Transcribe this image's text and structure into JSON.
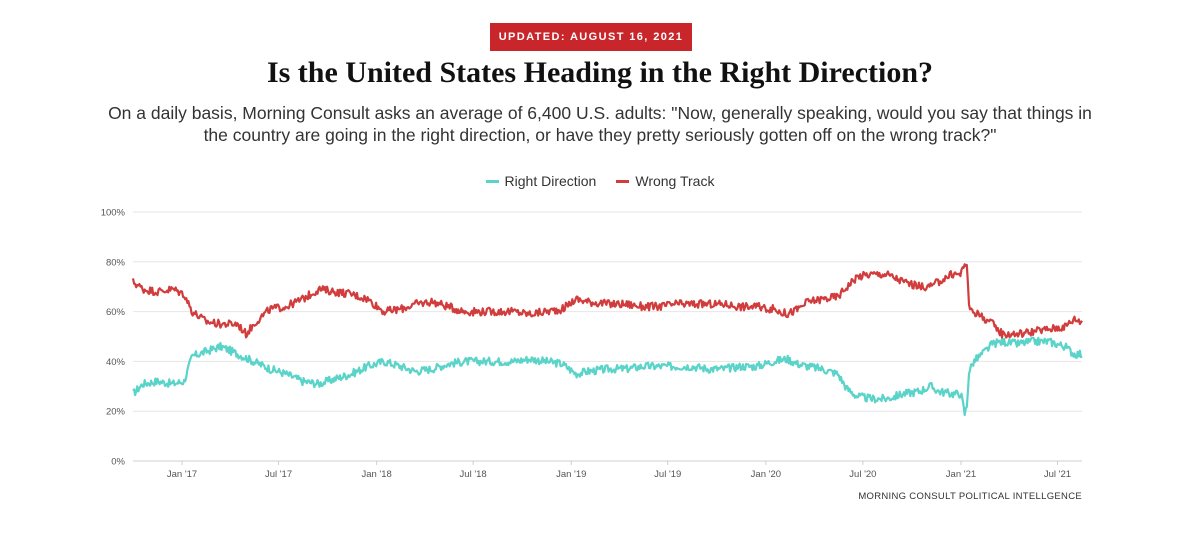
{
  "badge": {
    "text": "UPDATED: AUGUST 16, 2021"
  },
  "header": {
    "title": "Is the United States Heading in the Right Direction?",
    "subtitle": "On a daily basis, Morning Consult asks an average of 6,400 U.S. adults: \"Now, generally speaking, would you say that things in the country are going in the right direction, or have they pretty seriously gotten off on the wrong track?\""
  },
  "footer": {
    "source": "MORNING CONSULT POLITICAL INTELLGENCE"
  },
  "chart_data": {
    "type": "line",
    "title": "Is the United States Heading in the Right Direction?",
    "xlabel": "",
    "ylabel": "",
    "ylim": [
      0,
      100
    ],
    "xlim": [
      "2016-10-01",
      "2021-08-16"
    ],
    "y_ticks": [
      "0%",
      "20%",
      "40%",
      "60%",
      "80%",
      "100%"
    ],
    "y_tick_values": [
      0,
      20,
      40,
      60,
      80,
      100
    ],
    "x_ticks": [
      "Jan '17",
      "Jul '17",
      "Jan '18",
      "Jul '18",
      "Jan '19",
      "Jul '19",
      "Jan '20",
      "Jul '20",
      "Jan '21",
      "Jul '21"
    ],
    "x_tick_dates": [
      "2017-01-01",
      "2017-07-01",
      "2018-01-01",
      "2018-07-01",
      "2019-01-01",
      "2019-07-01",
      "2020-01-01",
      "2020-07-01",
      "2021-01-01",
      "2021-07-01"
    ],
    "legend_position": "top-center",
    "grid": true,
    "series": [
      {
        "name": "Right Direction",
        "color": "#5ad3c9",
        "points": [
          [
            "2016-10-01",
            27
          ],
          [
            "2016-10-20",
            31
          ],
          [
            "2016-11-15",
            32
          ],
          [
            "2016-12-15",
            31
          ],
          [
            "2017-01-05",
            32
          ],
          [
            "2017-01-20",
            42
          ],
          [
            "2017-02-15",
            44
          ],
          [
            "2017-03-15",
            46
          ],
          [
            "2017-04-15",
            43
          ],
          [
            "2017-05-15",
            40
          ],
          [
            "2017-06-15",
            37
          ],
          [
            "2017-07-15",
            35
          ],
          [
            "2017-08-15",
            32
          ],
          [
            "2017-09-15",
            31
          ],
          [
            "2017-10-15",
            33
          ],
          [
            "2017-11-15",
            35
          ],
          [
            "2017-12-15",
            38
          ],
          [
            "2018-01-15",
            40
          ],
          [
            "2018-02-15",
            38
          ],
          [
            "2018-03-15",
            36
          ],
          [
            "2018-04-15",
            37
          ],
          [
            "2018-05-15",
            39
          ],
          [
            "2018-06-15",
            40
          ],
          [
            "2018-07-15",
            40
          ],
          [
            "2018-08-15",
            40
          ],
          [
            "2018-09-15",
            40
          ],
          [
            "2018-10-15",
            41
          ],
          [
            "2018-11-15",
            40
          ],
          [
            "2018-12-15",
            39
          ],
          [
            "2019-01-10",
            35
          ],
          [
            "2019-02-01",
            36
          ],
          [
            "2019-03-15",
            37
          ],
          [
            "2019-04-15",
            37
          ],
          [
            "2019-05-15",
            38
          ],
          [
            "2019-06-15",
            38
          ],
          [
            "2019-07-15",
            38
          ],
          [
            "2019-08-15",
            38
          ],
          [
            "2019-09-15",
            37
          ],
          [
            "2019-10-15",
            37
          ],
          [
            "2019-11-15",
            38
          ],
          [
            "2019-12-15",
            38
          ],
          [
            "2020-01-15",
            40
          ],
          [
            "2020-02-10",
            41
          ],
          [
            "2020-03-01",
            39
          ],
          [
            "2020-03-20",
            38
          ],
          [
            "2020-04-15",
            37
          ],
          [
            "2020-05-15",
            35
          ],
          [
            "2020-06-01",
            29
          ],
          [
            "2020-06-20",
            26
          ],
          [
            "2020-07-15",
            25
          ],
          [
            "2020-08-15",
            25
          ],
          [
            "2020-09-15",
            27
          ],
          [
            "2020-10-15",
            28
          ],
          [
            "2020-11-05",
            30
          ],
          [
            "2020-11-20",
            28
          ],
          [
            "2020-12-15",
            27
          ],
          [
            "2021-01-01",
            27
          ],
          [
            "2021-01-08",
            19
          ],
          [
            "2021-01-12",
            22
          ],
          [
            "2021-01-16",
            36
          ],
          [
            "2021-01-25",
            40
          ],
          [
            "2021-02-10",
            43
          ],
          [
            "2021-03-01",
            47
          ],
          [
            "2021-03-20",
            48
          ],
          [
            "2021-04-15",
            47
          ],
          [
            "2021-05-15",
            48
          ],
          [
            "2021-06-15",
            48
          ],
          [
            "2021-07-15",
            46
          ],
          [
            "2021-08-01",
            43
          ],
          [
            "2021-08-16",
            43
          ]
        ]
      },
      {
        "name": "Wrong Track",
        "color": "#d13d3d",
        "points": [
          [
            "2016-10-01",
            72
          ],
          [
            "2016-10-20",
            69
          ],
          [
            "2016-11-15",
            68
          ],
          [
            "2016-12-15",
            69
          ],
          [
            "2017-01-05",
            67
          ],
          [
            "2017-01-20",
            60
          ],
          [
            "2017-02-15",
            56
          ],
          [
            "2017-03-15",
            55
          ],
          [
            "2017-04-15",
            55
          ],
          [
            "2017-05-01",
            51
          ],
          [
            "2017-05-20",
            56
          ],
          [
            "2017-06-15",
            61
          ],
          [
            "2017-07-15",
            62
          ],
          [
            "2017-08-15",
            65
          ],
          [
            "2017-09-15",
            69
          ],
          [
            "2017-10-15",
            68
          ],
          [
            "2017-11-15",
            67
          ],
          [
            "2017-12-15",
            65
          ],
          [
            "2018-01-15",
            60
          ],
          [
            "2018-02-15",
            61
          ],
          [
            "2018-03-15",
            63
          ],
          [
            "2018-04-15",
            64
          ],
          [
            "2018-05-15",
            62
          ],
          [
            "2018-06-15",
            60
          ],
          [
            "2018-07-15",
            60
          ],
          [
            "2018-08-15",
            60
          ],
          [
            "2018-09-15",
            60
          ],
          [
            "2018-10-15",
            59
          ],
          [
            "2018-11-15",
            60
          ],
          [
            "2018-12-15",
            61
          ],
          [
            "2019-01-10",
            65
          ],
          [
            "2019-02-01",
            64
          ],
          [
            "2019-03-15",
            63
          ],
          [
            "2019-04-15",
            63
          ],
          [
            "2019-05-15",
            62
          ],
          [
            "2019-06-15",
            62
          ],
          [
            "2019-07-15",
            63
          ],
          [
            "2019-08-15",
            63
          ],
          [
            "2019-09-15",
            63
          ],
          [
            "2019-10-15",
            63
          ],
          [
            "2019-11-15",
            62
          ],
          [
            "2019-12-15",
            62
          ],
          [
            "2020-01-15",
            61
          ],
          [
            "2020-02-10",
            59
          ],
          [
            "2020-03-01",
            61
          ],
          [
            "2020-03-20",
            64
          ],
          [
            "2020-04-15",
            65
          ],
          [
            "2020-05-15",
            66
          ],
          [
            "2020-06-01",
            70
          ],
          [
            "2020-06-20",
            74
          ],
          [
            "2020-07-15",
            75
          ],
          [
            "2020-08-15",
            75
          ],
          [
            "2020-09-15",
            72
          ],
          [
            "2020-10-15",
            70
          ],
          [
            "2020-11-05",
            70
          ],
          [
            "2020-11-20",
            72
          ],
          [
            "2020-12-15",
            75
          ],
          [
            "2021-01-01",
            75
          ],
          [
            "2021-01-08",
            80
          ],
          [
            "2021-01-12",
            78
          ],
          [
            "2021-01-16",
            62
          ],
          [
            "2021-01-25",
            60
          ],
          [
            "2021-02-10",
            58
          ],
          [
            "2021-03-01",
            55
          ],
          [
            "2021-03-20",
            51
          ],
          [
            "2021-04-15",
            51
          ],
          [
            "2021-05-15",
            52
          ],
          [
            "2021-06-15",
            53
          ],
          [
            "2021-07-15",
            54
          ],
          [
            "2021-08-01",
            57
          ],
          [
            "2021-08-16",
            56
          ]
        ]
      }
    ]
  }
}
